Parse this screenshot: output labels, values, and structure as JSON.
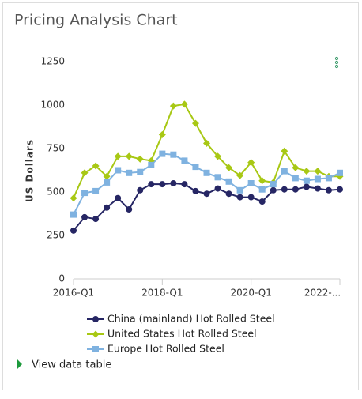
{
  "title": "Pricing Analysis Chart",
  "view_data_table": "View data table",
  "chart_data": {
    "type": "line",
    "y_label": "US Dollars",
    "categories": [
      "2016-Q1",
      null,
      null,
      null,
      null,
      null,
      null,
      null,
      "2018-Q1",
      null,
      null,
      null,
      null,
      null,
      null,
      null,
      "2020-Q1",
      null,
      null,
      null,
      null,
      null,
      null,
      null,
      "2022-..."
    ],
    "ylim": [
      0,
      1250
    ],
    "yticks": [
      0,
      250,
      500,
      750,
      1000,
      1250
    ],
    "grid": false,
    "legend": "bottom",
    "series": [
      {
        "name": "China (mainland) Hot Rolled Steel",
        "color": "#262664",
        "marker": "circle",
        "values": [
          278,
          355,
          345,
          410,
          465,
          400,
          510,
          545,
          545,
          550,
          545,
          505,
          490,
          520,
          490,
          470,
          470,
          445,
          510,
          515,
          515,
          530,
          520,
          510,
          515
        ]
      },
      {
        "name": "United States Hot Rolled Steel",
        "color": "#a8c814",
        "marker": "diamond",
        "values": [
          465,
          610,
          650,
          590,
          705,
          705,
          690,
          680,
          830,
          995,
          1005,
          895,
          780,
          705,
          640,
          595,
          670,
          565,
          555,
          735,
          640,
          620,
          620,
          590,
          590
        ]
      },
      {
        "name": "Europe Hot Rolled Steel",
        "color": "#7fb2e0",
        "marker": "square",
        "values": [
          370,
          495,
          505,
          555,
          625,
          610,
          615,
          655,
          720,
          715,
          680,
          645,
          610,
          585,
          560,
          510,
          550,
          515,
          545,
          620,
          580,
          565,
          575,
          580,
          610
        ]
      }
    ]
  }
}
